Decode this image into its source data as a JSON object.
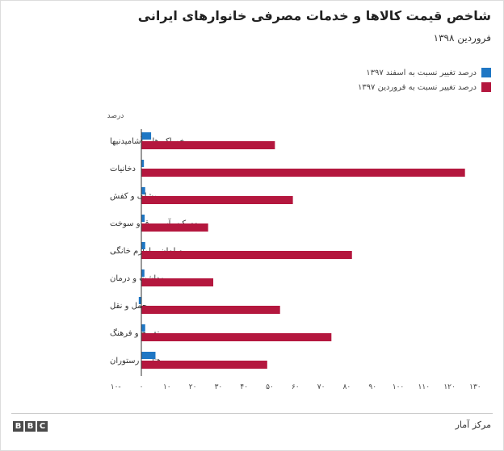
{
  "header": {
    "title": "شاخص قیمت کالاها و خدمات مصرفی خانوارهای ایرانی",
    "subtitle": "فروردین ۱۳۹۸"
  },
  "legend": [
    {
      "label": "درصد تغییر نسبت به اسفند ۱۳۹۷",
      "color": "#1f77c4"
    },
    {
      "label": "درصد تغییر نسبت به فروردین ۱۳۹۷",
      "color": "#b4173e"
    }
  ],
  "footer": {
    "logo_letters": [
      "B",
      "B",
      "C"
    ],
    "source": "مرکز آمار"
  },
  "chart_data": {
    "type": "bar",
    "orientation": "horizontal",
    "unit_label": "درصد",
    "categories": [
      "خوراکی‌ها و آشامیدنیها",
      "دخانیات",
      "پوشاک و کفش",
      "مسکن، آب، برق و سوخت",
      "مبلمان و لوازم خانگی",
      "بهداشت و درمان",
      "حمل و نقل",
      "تفریح و فرهنگ",
      "هتل و رستوران"
    ],
    "series": [
      {
        "name": "درصد تغییر نسبت به اسفند ۱۳۹۷",
        "color": "#1f77c4",
        "values": [
          3.8,
          1.0,
          1.5,
          1.3,
          1.5,
          1.2,
          -1.0,
          1.5,
          5.5
        ]
      },
      {
        "name": "درصد تغییر نسبت به فروردین ۱۳۹۷",
        "color": "#b4173e",
        "values": [
          52,
          126,
          59,
          26,
          82,
          28,
          54,
          74,
          49
        ]
      }
    ],
    "xlim": [
      -10,
      130
    ],
    "xticks": [
      -10,
      0,
      10,
      20,
      30,
      40,
      50,
      60,
      70,
      80,
      90,
      100,
      110,
      120,
      130
    ],
    "xtick_labels": [
      "۱۰-",
      "۰",
      "۱۰",
      "۲۰",
      "۳۰",
      "۴۰",
      "۵۰",
      "۶۰",
      "۷۰",
      "۸۰",
      "۹۰",
      "۱۰۰",
      "۱۱۰",
      "۱۲۰",
      "۱۳۰"
    ],
    "grid": false,
    "legend_position": "top-right"
  }
}
